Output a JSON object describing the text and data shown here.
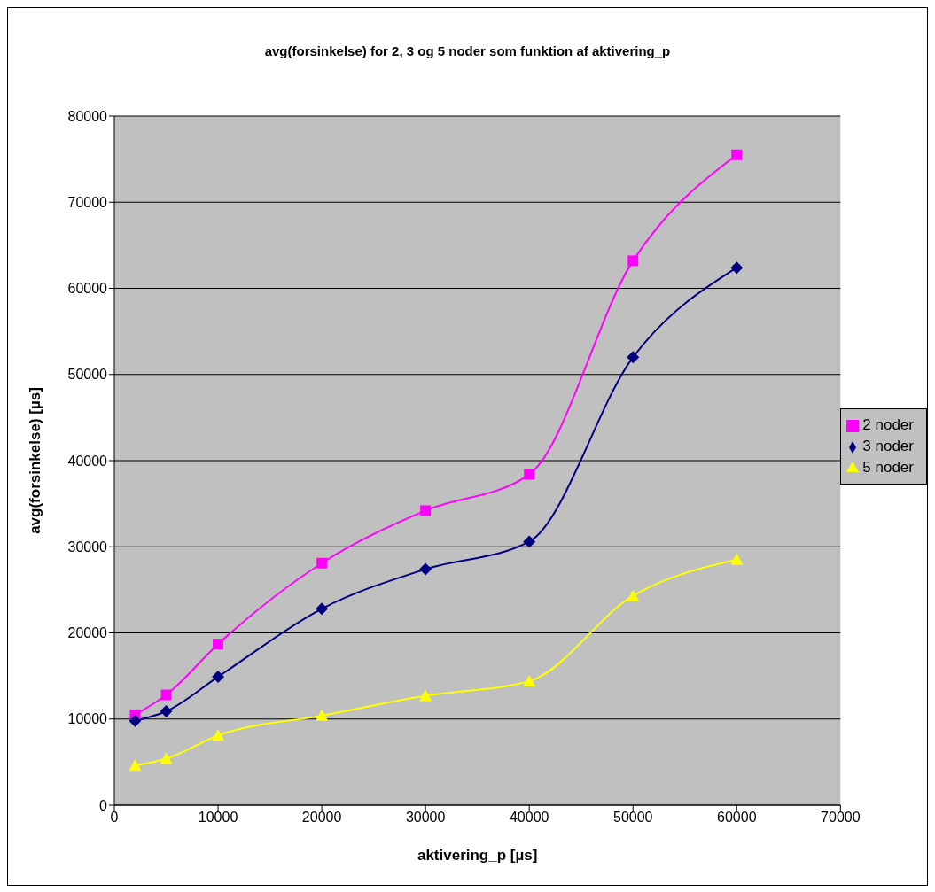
{
  "chart_data": {
    "type": "line",
    "title": "avg(forsinkelse) for 2, 3 og 5 noder som funktion af aktivering_p",
    "xlabel": "aktivering_p [µs]",
    "ylabel": "avg(forsinkelse) [µs]",
    "x": [
      2000,
      5000,
      10000,
      20000,
      30000,
      40000,
      50000,
      60000
    ],
    "series": [
      {
        "name": "2 noder",
        "color": "#ff00ff",
        "marker": "square",
        "values": [
          10500,
          12800,
          18700,
          28100,
          34200,
          38400,
          63200,
          75500
        ]
      },
      {
        "name": "3 noder",
        "color": "#000080",
        "marker": "diamond",
        "values": [
          9800,
          10900,
          14900,
          22800,
          27400,
          30600,
          52000,
          62400
        ]
      },
      {
        "name": "5 noder",
        "color": "#ffff00",
        "marker": "triangle",
        "values": [
          4600,
          5400,
          8100,
          10400,
          12700,
          14400,
          24300,
          28500
        ]
      }
    ],
    "xlim": [
      0,
      70000
    ],
    "xticks": [
      0,
      10000,
      20000,
      30000,
      40000,
      50000,
      60000,
      70000
    ],
    "ylim": [
      0,
      80000
    ],
    "yticks": [
      0,
      10000,
      20000,
      30000,
      40000,
      50000,
      60000,
      70000,
      80000
    ],
    "grid": "y",
    "legend": "right",
    "line_style": "solid"
  }
}
